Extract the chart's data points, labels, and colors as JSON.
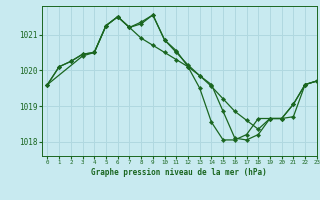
{
  "title": "Graphe pression niveau de la mer (hPa)",
  "background_color": "#c8eaf0",
  "grid_color": "#b0d8e0",
  "line_color": "#1a6620",
  "marker_color": "#1a6620",
  "xlim": [
    -0.5,
    23
  ],
  "ylim": [
    1017.6,
    1021.8
  ],
  "yticks": [
    1018,
    1019,
    1020,
    1021
  ],
  "xticks": [
    0,
    1,
    2,
    3,
    4,
    5,
    6,
    7,
    8,
    9,
    10,
    11,
    12,
    13,
    14,
    15,
    16,
    17,
    18,
    19,
    20,
    21,
    22,
    23
  ],
  "series": [
    {
      "x": [
        0,
        1,
        2,
        3,
        4,
        5,
        6,
        7,
        8,
        9,
        10,
        11,
        12,
        13,
        14,
        15,
        16,
        17,
        18,
        19,
        20,
        21,
        22,
        23
      ],
      "y": [
        1019.6,
        1020.1,
        1020.25,
        1020.45,
        1020.5,
        1021.25,
        1021.5,
        1021.2,
        1021.3,
        1021.55,
        1020.85,
        1020.5,
        1020.15,
        1019.85,
        1019.55,
        1019.2,
        1018.85,
        1018.6,
        1018.35,
        1018.65,
        1018.65,
        1019.05,
        1019.6,
        1019.7
      ]
    },
    {
      "x": [
        0,
        1,
        2,
        3,
        4,
        5,
        6,
        7,
        8,
        9,
        10,
        11,
        12,
        13,
        14,
        15,
        16,
        17,
        18,
        19,
        20,
        21,
        22,
        23
      ],
      "y": [
        1019.6,
        1020.1,
        1020.25,
        1020.45,
        1020.5,
        1021.25,
        1021.5,
        1021.2,
        1020.9,
        1020.7,
        1020.5,
        1020.3,
        1020.1,
        1019.85,
        1019.6,
        1018.85,
        1018.1,
        1018.05,
        1018.2,
        1018.65,
        1018.65,
        1018.7,
        1019.6,
        1019.7
      ]
    },
    {
      "x": [
        0,
        3,
        4,
        5,
        6,
        7,
        8,
        9,
        10,
        11,
        12,
        13,
        14,
        15,
        16,
        17,
        18,
        19,
        20,
        21,
        22,
        23
      ],
      "y": [
        1019.6,
        1020.4,
        1020.5,
        1021.25,
        1021.5,
        1021.2,
        1021.35,
        1021.55,
        1020.85,
        1020.55,
        1020.1,
        1019.5,
        1018.55,
        1018.05,
        1018.05,
        1018.2,
        1018.65,
        1018.65,
        1018.65,
        1019.05,
        1019.6,
        1019.7
      ]
    }
  ]
}
